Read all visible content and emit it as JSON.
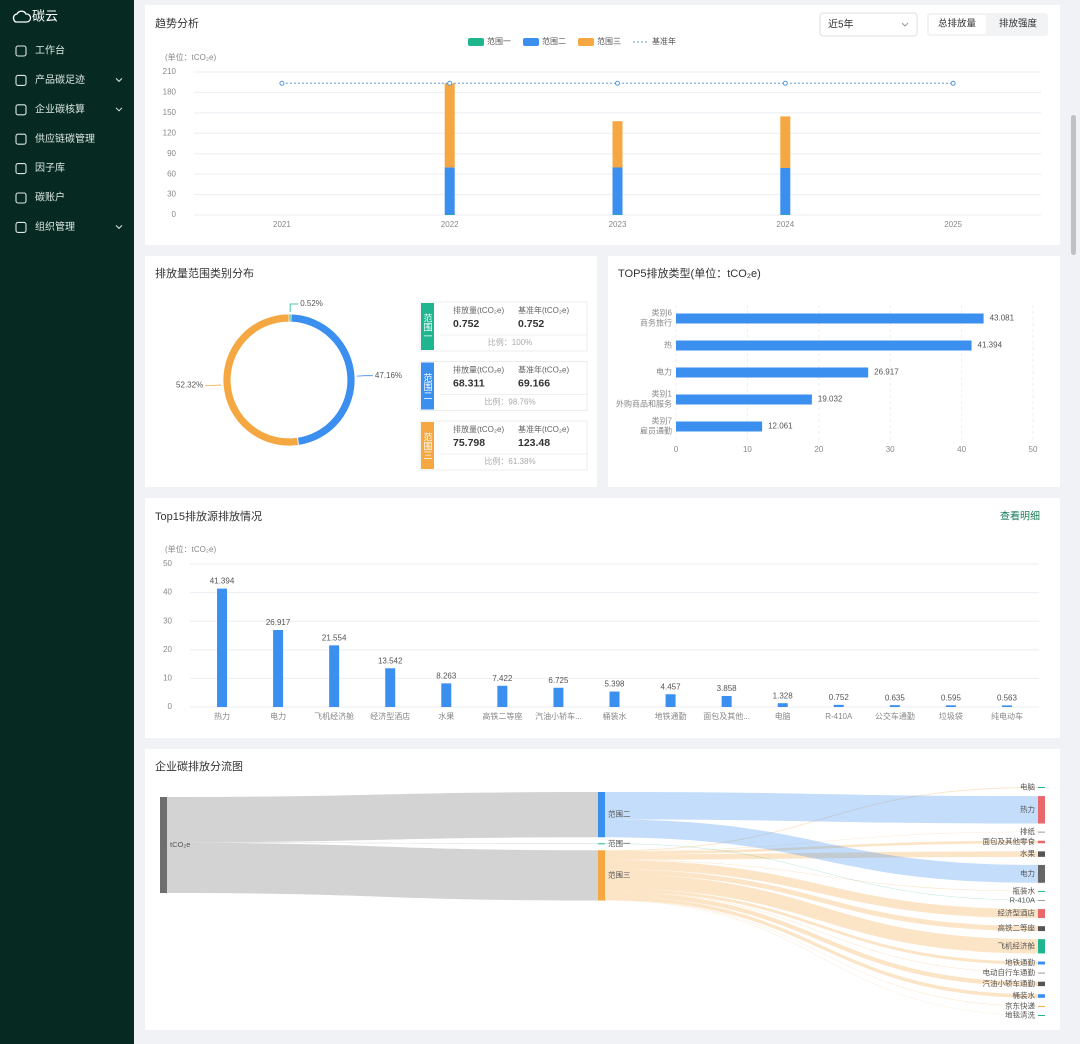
{
  "sidebar": {
    "logo": "碳云",
    "menu": [
      {
        "label": "工作台",
        "expandable": false
      },
      {
        "label": "产品碳足迹",
        "expandable": true
      },
      {
        "label": "企业碳核算",
        "expandable": true
      },
      {
        "label": "供应链碳管理",
        "expandable": false
      },
      {
        "label": "因子库",
        "expandable": false
      },
      {
        "label": "碳账户",
        "expandable": false
      },
      {
        "label": "组织管理",
        "expandable": true
      }
    ]
  },
  "controls": {
    "period": "近5年",
    "toggles": [
      "总排放量",
      "排放强度"
    ]
  },
  "links": {
    "top15_detail": "查看明细"
  },
  "scope_cards": [
    {
      "label": "范围一",
      "emission_title": "排放量(tCO₂e)",
      "emission": 0.752,
      "baseline_title": "基准年(tCO₂e)",
      "baseline": 0.752,
      "ratio": "比例：100%"
    },
    {
      "label": "范围二",
      "emission_title": "排放量(tCO₂e)",
      "emission": 68.311,
      "baseline_title": "基准年(tCO₂e)",
      "baseline": 69.166,
      "ratio": "比例：98.76%"
    },
    {
      "label": "范围三",
      "emission_title": "排放量(tCO₂e)",
      "emission": 75.798,
      "baseline_title": "基准年(tCO₂e)",
      "baseline": 123.48,
      "ratio": "比例：61.38%"
    }
  ],
  "chart_data": [
    {
      "type": "bar",
      "title": "趋势分析",
      "unit": "(单位：tCO₂e)",
      "stacked": true,
      "grid": true,
      "legend": "top",
      "categories": [
        "2021",
        "2022",
        "2023",
        "2024",
        "2025"
      ],
      "series": [
        {
          "name": "范围一",
          "color": "#1fb58f",
          "values": [
            null,
            0.752,
            0.75,
            0.752,
            null
          ]
        },
        {
          "name": "范围二",
          "color": "#3b8fef",
          "values": [
            null,
            69.166,
            69,
            68.311,
            null
          ]
        },
        {
          "name": "范围三",
          "color": "#f5a742",
          "values": [
            null,
            123.48,
            68,
            75.798,
            null
          ]
        },
        {
          "name": "基准年",
          "color": "#5b9bd5",
          "type": "line",
          "values": [
            193.398,
            193.398,
            193.398,
            193.398,
            193.398
          ]
        }
      ],
      "ylim": [
        0,
        210
      ],
      "yticks": [
        0,
        30,
        60,
        90,
        120,
        150,
        180,
        210
      ]
    },
    {
      "type": "pie",
      "title": "排放量范围类别分布",
      "doughnut": true,
      "categories": [
        "范围一",
        "范围二",
        "范围三"
      ],
      "values": [
        0.52,
        47.16,
        52.32
      ],
      "value_labels": [
        "0.52%",
        "47.16%",
        "52.32%"
      ],
      "colors": [
        "#1fb58f",
        "#3b8fef",
        "#f5a742"
      ]
    },
    {
      "type": "bar",
      "title": "TOP5排放类型(单位：tCO₂e)",
      "horizontal": true,
      "grid": true,
      "data_labels": true,
      "color": "#3b8fef",
      "categories": [
        [
          "类别6",
          "商务旅行"
        ],
        [
          "热"
        ],
        [
          "电力"
        ],
        [
          "类别1",
          "外购商品和服务"
        ],
        [
          "类别7",
          "雇员通勤"
        ]
      ],
      "values": [
        43.081,
        41.394,
        26.917,
        19.032,
        12.061
      ],
      "xlim": [
        0,
        50
      ],
      "xticks": [
        0,
        10,
        20,
        30,
        40,
        50
      ]
    },
    {
      "type": "bar",
      "title": "Top15排放源排放情况",
      "unit": "(单位：tCO₂e)",
      "grid": true,
      "data_labels": true,
      "color": "#3b8fef",
      "categories": [
        "热力",
        "电力",
        "飞机经济舱",
        "经济型酒店",
        "水果",
        "高铁二等座",
        "汽油小轿车...",
        "桶装水",
        "地铁通勤",
        "面包及其他...",
        "电脑",
        "R-410A",
        "公交车通勤",
        "垃圾袋",
        "纯电动车"
      ],
      "values": [
        41.394,
        26.917,
        21.554,
        13.542,
        8.263,
        7.422,
        6.725,
        5.398,
        4.457,
        3.858,
        1.328,
        0.752,
        0.635,
        0.595,
        0.563
      ],
      "ylim": [
        0,
        50
      ],
      "yticks": [
        0,
        10,
        20,
        30,
        40,
        50
      ]
    },
    {
      "type": "sankey",
      "title": "企业碳排放分流图",
      "nodes": [
        {
          "name": "tCO₂e",
          "color": "#6e6e6e"
        },
        {
          "name": "范围二",
          "color": "#3b8fef"
        },
        {
          "name": "范围一",
          "color": "#1fb58f"
        },
        {
          "name": "范围三",
          "color": "#f5a742"
        },
        {
          "name": "电脑",
          "color": "#1fb58f"
        },
        {
          "name": "热力",
          "color": "#e8686b"
        },
        {
          "name": "排纸",
          "color": "#9e9e9e"
        },
        {
          "name": "面包及其他零食",
          "color": "#e8686b"
        },
        {
          "name": "水果",
          "color": "#555555"
        },
        {
          "name": "电力",
          "color": "#666666"
        },
        {
          "name": "瓶装水",
          "color": "#1fb58f"
        },
        {
          "name": "R-410A",
          "color": "#9e9e9e"
        },
        {
          "name": "经济型酒店",
          "color": "#e8686b"
        },
        {
          "name": "高铁二等座",
          "color": "#555555"
        },
        {
          "name": "飞机经济舱",
          "color": "#1fb58f"
        },
        {
          "name": "地铁通勤",
          "color": "#3b8fef"
        },
        {
          "name": "电动自行车通勤",
          "color": "#9e9e9e"
        },
        {
          "name": "汽油小轿车通勤",
          "color": "#555555"
        },
        {
          "name": "桶装水",
          "color": "#3b8fef"
        },
        {
          "name": "京东快递",
          "color": "#f5a742"
        },
        {
          "name": "地毯清洗",
          "color": "#1fb58f"
        }
      ],
      "links": [
        {
          "source": "tCO₂e",
          "target": "范围二",
          "value": 68.311
        },
        {
          "source": "tCO₂e",
          "target": "范围一",
          "value": 0.752
        },
        {
          "source": "tCO₂e",
          "target": "范围三",
          "value": 75.798
        },
        {
          "source": "范围三",
          "target": "电脑",
          "value": 1.328
        },
        {
          "source": "范围二",
          "target": "热力",
          "value": 41.394
        },
        {
          "source": "范围三",
          "target": "排纸",
          "value": 0.7
        },
        {
          "source": "范围三",
          "target": "面包及其他零食",
          "value": 3.858
        },
        {
          "source": "范围三",
          "target": "水果",
          "value": 8.263
        },
        {
          "source": "范围二",
          "target": "电力",
          "value": 26.917
        },
        {
          "source": "范围三",
          "target": "瓶装水",
          "value": 0.8
        },
        {
          "source": "范围一",
          "target": "R-410A",
          "value": 0.752
        },
        {
          "source": "范围三",
          "target": "经济型酒店",
          "value": 13.542
        },
        {
          "source": "范围三",
          "target": "高铁二等座",
          "value": 7.422
        },
        {
          "source": "范围三",
          "target": "飞机经济舱",
          "value": 21.554
        },
        {
          "source": "范围三",
          "target": "地铁通勤",
          "value": 4.457
        },
        {
          "source": "范围三",
          "target": "电动自行车通勤",
          "value": 0.651
        },
        {
          "source": "范围三",
          "target": "汽油小轿车通勤",
          "value": 6.725
        },
        {
          "source": "范围三",
          "target": "桶装水",
          "value": 5.398
        },
        {
          "source": "范围三",
          "target": "京东快递",
          "value": 0.6
        },
        {
          "source": "范围三",
          "target": "地毯清洗",
          "value": 0.5
        }
      ]
    }
  ]
}
